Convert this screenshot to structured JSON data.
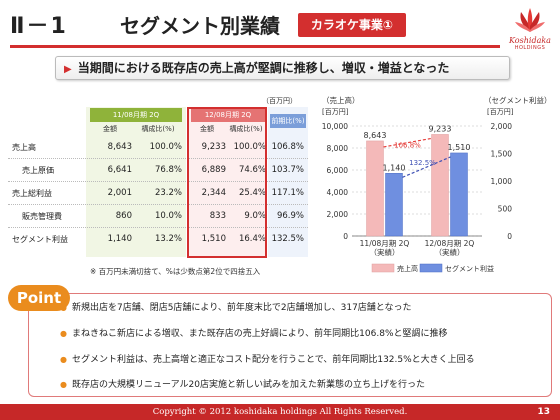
{
  "header": {
    "section": "Ⅱ－1",
    "title": "セグメント別業績",
    "badge": "カラオケ事業①",
    "logo_text": "Koshidaka",
    "logo_sub": "HOLDINGS"
  },
  "headline": "当期間における既存店の売上高が堅調に推移し、増収・増益となった",
  "table": {
    "unit": "（百万円）",
    "period_prev": "11/08月期 2Q",
    "period_cur": "12/08月期 2Q",
    "col_amount": "金額",
    "col_ratio": "構成比(%)",
    "col_yoy": "前期比(%)",
    "rows": [
      {
        "label": "売上高",
        "indent": false,
        "prev_amt": "8,643",
        "prev_ratio": "100.0%",
        "cur_amt": "9,233",
        "cur_ratio": "100.0%",
        "yoy": "106.8%"
      },
      {
        "label": "売上原価",
        "indent": true,
        "prev_amt": "6,641",
        "prev_ratio": "76.8%",
        "cur_amt": "6,889",
        "cur_ratio": "74.6%",
        "yoy": "103.7%"
      },
      {
        "label": "売上総利益",
        "indent": false,
        "prev_amt": "2,001",
        "prev_ratio": "23.2%",
        "cur_amt": "2,344",
        "cur_ratio": "25.4%",
        "yoy": "117.1%"
      },
      {
        "label": "販売管理費",
        "indent": true,
        "prev_amt": "860",
        "prev_ratio": "10.0%",
        "cur_amt": "833",
        "cur_ratio": "9.0%",
        "yoy": "96.9%"
      },
      {
        "label": "セグメント利益",
        "indent": false,
        "prev_amt": "1,140",
        "prev_ratio": "13.2%",
        "cur_amt": "1,510",
        "cur_ratio": "16.4%",
        "yoy": "132.5%"
      }
    ],
    "note": "※ 百万円未満切捨て、%は少数点第2位で四捨五入"
  },
  "chart_data": {
    "type": "bar",
    "categories": [
      "11/08月期 2Q\n（実績）",
      "12/08月期 2Q\n（実績）"
    ],
    "category_lines": [
      [
        "11/08月期 2Q",
        "（実績）"
      ],
      [
        "12/08月期 2Q",
        "（実績）"
      ]
    ],
    "series": [
      {
        "name": "売上高",
        "axis": "left",
        "values": [
          8643,
          9233
        ],
        "labels": [
          "8,643",
          "9,233"
        ],
        "color": "#f4b9b9"
      },
      {
        "name": "セグメント利益",
        "axis": "right",
        "values": [
          1140,
          1510
        ],
        "labels": [
          "1,140",
          "1,510"
        ],
        "color": "#6f8fe0"
      }
    ],
    "left_axis": {
      "label": "（売上高）",
      "unit": "[百万円]",
      "ylim": [
        0,
        10000
      ],
      "ticks": [
        "0",
        "2,000",
        "4,000",
        "6,000",
        "8,000",
        "10,000"
      ]
    },
    "right_axis": {
      "label": "（セグメント利益）",
      "unit": "[百万円]",
      "ylim": [
        0,
        2000
      ],
      "ticks": [
        "0",
        "500",
        "1,000",
        "1,500",
        "2,000"
      ]
    },
    "annotations": [
      {
        "text": "106.8%",
        "color": "#e53935"
      },
      {
        "text": "132.5%",
        "color": "#3f51b5"
      }
    ],
    "legend_position": "bottom",
    "grid": true
  },
  "point": {
    "tag": "Point",
    "bullets": [
      "新規出店を7店舗、閉店5店舗により、前年度末比で2店舗増加し、317店舗となった",
      "まねきねこ新店による増収、また既存店の売上好調により、前年同期比106.8%と堅調に推移",
      "セグメント利益は、売上高増と適正なコスト配分を行うことで、前年同期比132.5%と大きく上回る",
      "既存店の大規模リニューアル20店実施と新しい試みを加えた新業態の立ち上げを行った"
    ]
  },
  "footer": {
    "copyright": "Copyright © 2012 koshidaka holdings All Rights Reserved.",
    "page": "13"
  },
  "colors": {
    "accent": "#d32f2f",
    "point_tag": "#ea8c1e",
    "sales_bar": "#f4b9b9",
    "profit_bar": "#6f8fe0"
  }
}
